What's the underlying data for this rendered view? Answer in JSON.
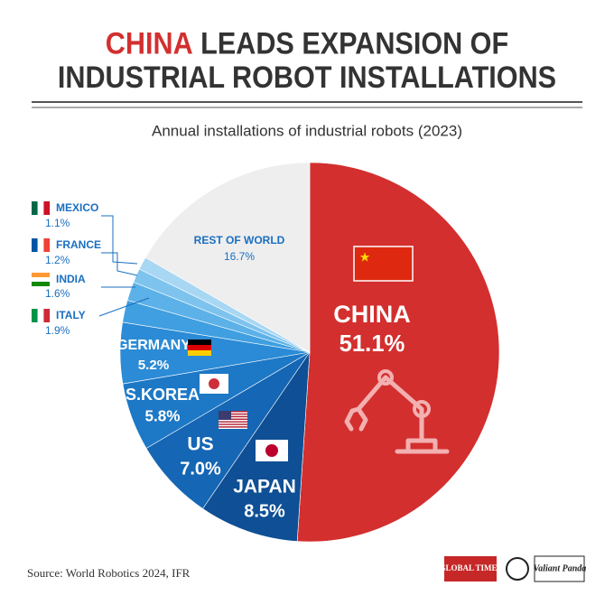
{
  "chart_data": {
    "type": "pie",
    "title": [
      "CHINA",
      "LEADS EXPANSION OF",
      "INDUSTRIAL ROBOT INSTALLATIONS"
    ],
    "subtitle": "Annual installations of industrial robots (2023)",
    "categories": [
      "CHINA",
      "JAPAN",
      "US",
      "S.KOREA",
      "GERMANY",
      "ITALY",
      "INDIA",
      "FRANCE",
      "MEXICO",
      "REST OF WORLD"
    ],
    "values": [
      51.1,
      8.5,
      7.0,
      5.8,
      5.2,
      1.9,
      1.6,
      1.2,
      1.1,
      16.7
    ],
    "value_labels": [
      "51.1%",
      "8.5%",
      "7.0%",
      "5.8%",
      "5.2%",
      "1.9%",
      "1.6%",
      "1.2%",
      "1.1%",
      "16.7%"
    ],
    "colors": [
      "#d32f2f",
      "#0e4f95",
      "#1566b4",
      "#1d78c6",
      "#2b8bd6",
      "#3f9fe0",
      "#5cb1e8",
      "#7ec3ee",
      "#a8d7f4",
      "#eeeeee"
    ],
    "source": "Source: World Robotics 2024, IFR",
    "logos": [
      "GLOBAL TIMES",
      "Valiant Panda"
    ]
  }
}
